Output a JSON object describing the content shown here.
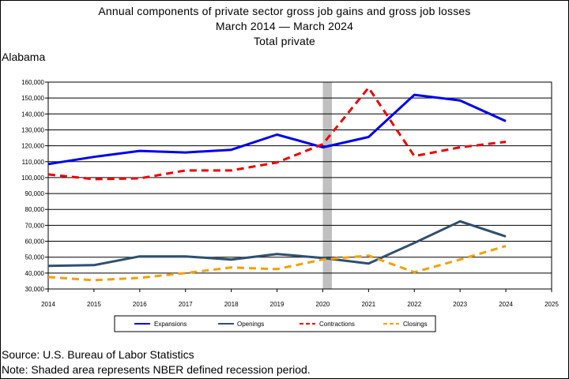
{
  "header": {
    "title_line1": "Annual components of private sector gross job gains and gross job losses",
    "title_line2": "March 2014 — March 2024",
    "title_line3": "Total private",
    "subtitle": "Alabama"
  },
  "footer": {
    "source": "Source: U.S. Bureau of Labor Statistics",
    "note": "Note: Shaded area represents NBER defined recession period."
  },
  "chart_data": {
    "type": "line",
    "title": "Annual components of private sector gross job gains and gross job losses",
    "xlabel": "",
    "ylabel": "",
    "xlim": [
      2014,
      2025
    ],
    "ylim": [
      30000,
      160000
    ],
    "x_ticks": [
      "2014",
      "2015",
      "2016",
      "2017",
      "2018",
      "2019",
      "2020",
      "2021",
      "2022",
      "2023",
      "2024",
      "2025"
    ],
    "y_ticks": [
      "30,000",
      "40,000",
      "50,000",
      "60,000",
      "70,000",
      "80,000",
      "90,000",
      "100,000",
      "110,000",
      "120,000",
      "130,000",
      "140,000",
      "150,000",
      "160,000"
    ],
    "grid": "horizontal",
    "legend_placement": "bottom",
    "recession_band": {
      "x_start": 2020.0,
      "x_end": 2020.2,
      "color": "#c0c0c0"
    },
    "x": [
      2014,
      2015,
      2016,
      2017,
      2018,
      2019,
      2020,
      2021,
      2022,
      2023,
      2024
    ],
    "series": [
      {
        "name": "Expansions",
        "color": "#0000ee",
        "dash": "solid",
        "values": [
          108500,
          113000,
          116800,
          115800,
          117500,
          127000,
          119000,
          125500,
          152000,
          148500,
          135500
        ]
      },
      {
        "name": "Openings",
        "color": "#2f4f6f",
        "dash": "solid",
        "values": [
          44500,
          45000,
          50500,
          50500,
          48500,
          52000,
          49500,
          46000,
          59000,
          72500,
          63000
        ]
      },
      {
        "name": "Contractions",
        "color": "#ee0000",
        "dash": "dashed",
        "values": [
          102000,
          99000,
          99500,
          104500,
          104500,
          109500,
          121000,
          156500,
          113500,
          119000,
          122500
        ]
      },
      {
        "name": "Closings",
        "color": "#f5a000",
        "dash": "dashed",
        "values": [
          37500,
          35500,
          37000,
          40000,
          43500,
          42500,
          48500,
          51000,
          40500,
          48500,
          57000
        ]
      }
    ]
  }
}
